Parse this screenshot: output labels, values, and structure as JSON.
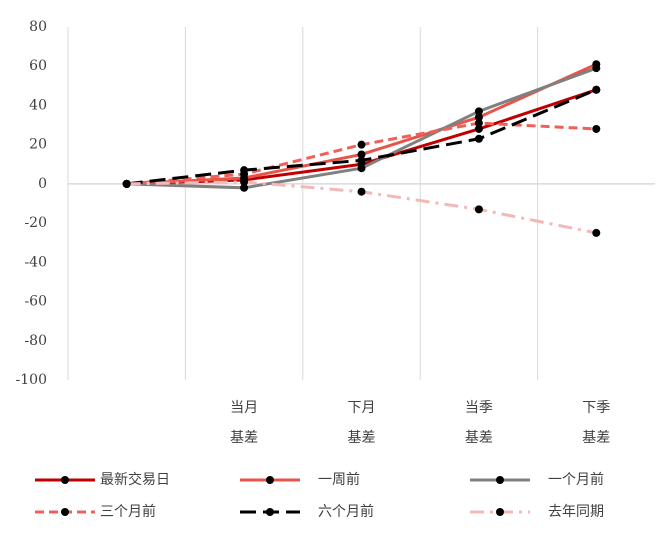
{
  "chart_data": {
    "type": "line",
    "categories": [
      null,
      [
        "当月",
        "基差"
      ],
      [
        "下月",
        "基差"
      ],
      [
        "当季",
        "基差"
      ],
      [
        "下季",
        "基差"
      ]
    ],
    "series": [
      {
        "name": "最新交易日",
        "color": "#c00000",
        "dash": "solid",
        "values": [
          0,
          2,
          10,
          28,
          48
        ]
      },
      {
        "name": "一周前",
        "color": "#e8534a",
        "dash": "solid",
        "values": [
          0,
          3,
          15,
          34,
          61
        ]
      },
      {
        "name": "一个月前",
        "color": "#808080",
        "dash": "solid",
        "values": [
          0,
          -2,
          8,
          37,
          59
        ]
      },
      {
        "name": "三个月前",
        "color": "#f0605a",
        "dash": "dash",
        "values": [
          0,
          5,
          20,
          31,
          28
        ]
      },
      {
        "name": "六个月前",
        "color": "#000000",
        "dash": "longdash",
        "values": [
          0,
          7,
          12,
          23,
          48
        ]
      },
      {
        "name": "去年同期",
        "color": "#f4b8b8",
        "dash": "dashdot",
        "values": [
          0,
          1,
          -4,
          -13,
          -25
        ]
      }
    ],
    "ylim": [
      -100,
      80
    ],
    "yticks": [
      -100,
      -80,
      -60,
      -40,
      -20,
      0,
      20,
      40,
      60,
      80
    ],
    "grid": "x",
    "legend": "bottom"
  }
}
